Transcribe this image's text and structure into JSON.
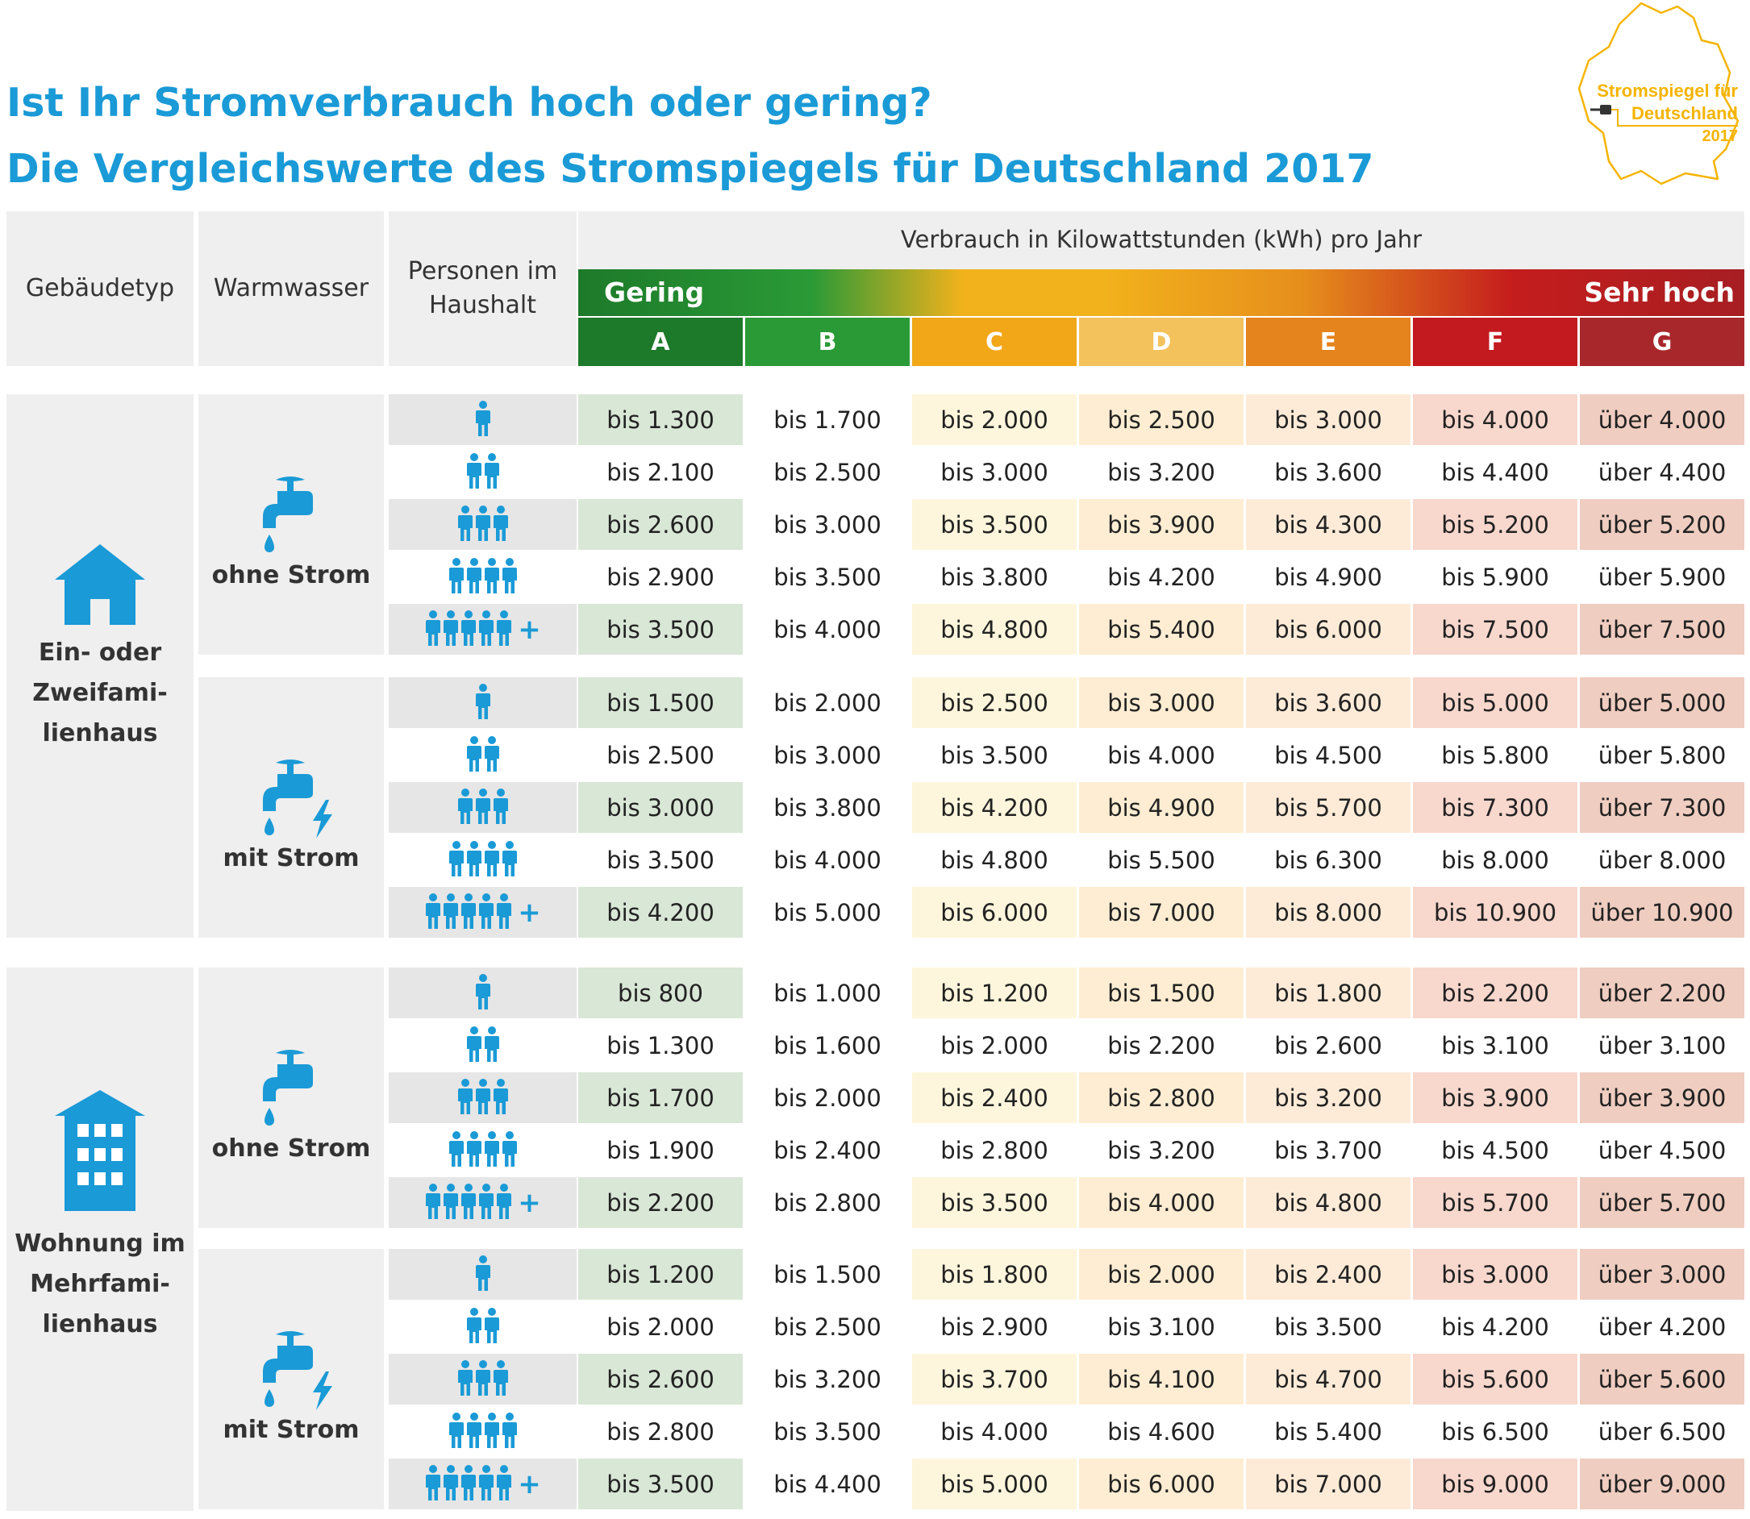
{
  "title_line1": "Ist Ihr Stromverbrauch hoch oder gering?",
  "title_line2": "Die Vergleichswerte des Stromspiegels für Deutschland 2017",
  "logo": {
    "text_line1": "Stromspiegel für",
    "text_line2": "Deutschland",
    "text_line3": "2017",
    "icon": "germany-outline-plug-icon"
  },
  "header": {
    "building_type": "Gebäudetyp",
    "hot_water": "Warmwasser",
    "persons": "Personen im Haushalt",
    "unit": "Verbrauch in Kilowattstunden (kWh) pro Jahr",
    "scale_low": "Gering",
    "scale_high": "Sehr hoch"
  },
  "classes": [
    {
      "label": "A",
      "color": "#1d7a2a",
      "tint": "#d9e7d6"
    },
    {
      "label": "B",
      "color": "#2a9a36",
      "tint": "#ffffff"
    },
    {
      "label": "C",
      "color": "#f1a718",
      "tint": "#fef6dc"
    },
    {
      "label": "D",
      "color": "#f4c25c",
      "tint": "#feedd2"
    },
    {
      "label": "E",
      "color": "#e5831c",
      "tint": "#fdebd8"
    },
    {
      "label": "F",
      "color": "#c31a1f",
      "tint": "#f8d7cd"
    },
    {
      "label": "G",
      "color": "#a8272a",
      "tint": "#efcdc0"
    }
  ],
  "colors": {
    "accent": "#1a9ad6",
    "logo": "#f5b400",
    "row_alt_gray": "#e6e6e6",
    "panel_gray": "#efefef"
  },
  "sections": [
    {
      "building": "Ein- oder Zweifami-lienhaus",
      "building_label_lines": [
        "Ein- oder",
        "Zweifami-",
        "lienhaus"
      ],
      "building_icon": "house-icon",
      "groups": [
        {
          "water": "ohne Strom",
          "water_icon": "water-tap-icon",
          "rows": [
            {
              "persons": 1,
              "values": [
                "1.300",
                "1.700",
                "2.000",
                "2.500",
                "3.000",
                "4.000",
                "4.000"
              ]
            },
            {
              "persons": 2,
              "values": [
                "2.100",
                "2.500",
                "3.000",
                "3.200",
                "3.600",
                "4.400",
                "4.400"
              ]
            },
            {
              "persons": 3,
              "values": [
                "2.600",
                "3.000",
                "3.500",
                "3.900",
                "4.300",
                "5.200",
                "5.200"
              ]
            },
            {
              "persons": 4,
              "values": [
                "2.900",
                "3.500",
                "3.800",
                "4.200",
                "4.900",
                "5.900",
                "5.900"
              ]
            },
            {
              "persons": "5+",
              "values": [
                "3.500",
                "4.000",
                "4.800",
                "5.400",
                "6.000",
                "7.500",
                "7.500"
              ]
            }
          ]
        },
        {
          "water": "mit Strom",
          "water_icon": "water-tap-electric-icon",
          "rows": [
            {
              "persons": 1,
              "values": [
                "1.500",
                "2.000",
                "2.500",
                "3.000",
                "3.600",
                "5.000",
                "5.000"
              ]
            },
            {
              "persons": 2,
              "values": [
                "2.500",
                "3.000",
                "3.500",
                "4.000",
                "4.500",
                "5.800",
                "5.800"
              ]
            },
            {
              "persons": 3,
              "values": [
                "3.000",
                "3.800",
                "4.200",
                "4.900",
                "5.700",
                "7.300",
                "7.300"
              ]
            },
            {
              "persons": 4,
              "values": [
                "3.500",
                "4.000",
                "4.800",
                "5.500",
                "6.300",
                "8.000",
                "8.000"
              ]
            },
            {
              "persons": "5+",
              "values": [
                "4.200",
                "5.000",
                "6.000",
                "7.000",
                "8.000",
                "10.900",
                "10.900"
              ]
            }
          ]
        }
      ]
    },
    {
      "building": "Wohnung im Mehrfami-lienhaus",
      "building_label_lines": [
        "Wohnung im",
        "Mehrfami-",
        "lienhaus"
      ],
      "building_icon": "apartment-building-icon",
      "groups": [
        {
          "water": "ohne Strom",
          "water_icon": "water-tap-icon",
          "rows": [
            {
              "persons": 1,
              "values": [
                "800",
                "1.000",
                "1.200",
                "1.500",
                "1.800",
                "2.200",
                "2.200"
              ]
            },
            {
              "persons": 2,
              "values": [
                "1.300",
                "1.600",
                "2.000",
                "2.200",
                "2.600",
                "3.100",
                "3.100"
              ]
            },
            {
              "persons": 3,
              "values": [
                "1.700",
                "2.000",
                "2.400",
                "2.800",
                "3.200",
                "3.900",
                "3.900"
              ]
            },
            {
              "persons": 4,
              "values": [
                "1.900",
                "2.400",
                "2.800",
                "3.200",
                "3.700",
                "4.500",
                "4.500"
              ]
            },
            {
              "persons": "5+",
              "values": [
                "2.200",
                "2.800",
                "3.500",
                "4.000",
                "4.800",
                "5.700",
                "5.700"
              ]
            }
          ]
        },
        {
          "water": "mit Strom",
          "water_icon": "water-tap-electric-icon",
          "rows": [
            {
              "persons": 1,
              "values": [
                "1.200",
                "1.500",
                "1.800",
                "2.000",
                "2.400",
                "3.000",
                "3.000"
              ]
            },
            {
              "persons": 2,
              "values": [
                "2.000",
                "2.500",
                "2.900",
                "3.100",
                "3.500",
                "4.200",
                "4.200"
              ]
            },
            {
              "persons": 3,
              "values": [
                "2.600",
                "3.200",
                "3.700",
                "4.100",
                "4.700",
                "5.600",
                "5.600"
              ]
            },
            {
              "persons": 4,
              "values": [
                "2.800",
                "3.500",
                "4.000",
                "4.600",
                "5.400",
                "6.500",
                "6.500"
              ]
            },
            {
              "persons": "5+",
              "values": [
                "3.500",
                "4.400",
                "5.000",
                "6.000",
                "7.000",
                "9.000",
                "9.000"
              ]
            }
          ]
        }
      ]
    }
  ],
  "prefix_bis": "bis",
  "prefix_ueber": "über",
  "plus_sign": "+"
}
